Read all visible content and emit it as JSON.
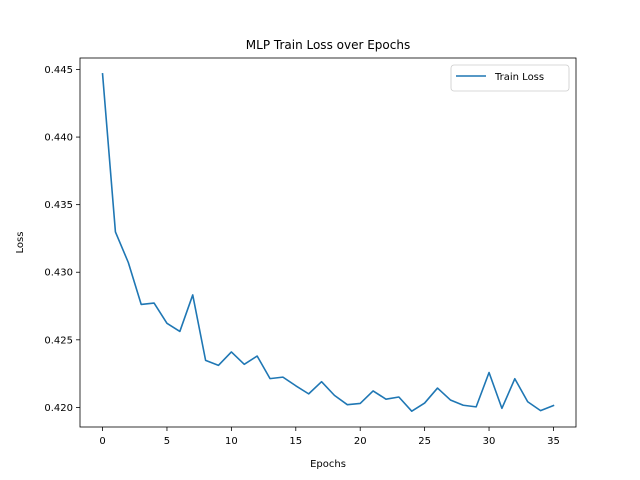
{
  "chart_data": {
    "type": "line",
    "title": "MLP Train Loss over Epochs",
    "xlabel": "Epochs",
    "ylabel": "Loss",
    "xlim": [
      -1.75,
      36.75
    ],
    "ylim": [
      0.41855,
      0.44585
    ],
    "x_ticks": [
      0,
      5,
      10,
      15,
      20,
      25,
      30,
      35
    ],
    "y_ticks": [
      0.42,
      0.425,
      0.43,
      0.435,
      0.44,
      0.445
    ],
    "y_tick_labels": [
      "0.420",
      "0.425",
      "0.430",
      "0.435",
      "0.440",
      "0.445"
    ],
    "grid": false,
    "legend_position": "top-right",
    "series": [
      {
        "name": "Train Loss",
        "color": "#1f77b4",
        "x": [
          0,
          1,
          2,
          3,
          4,
          5,
          6,
          7,
          8,
          9,
          10,
          11,
          12,
          13,
          14,
          15,
          16,
          17,
          18,
          19,
          20,
          21,
          22,
          23,
          24,
          25,
          26,
          27,
          28,
          29,
          30,
          31,
          32,
          33,
          34,
          35
        ],
        "values": [
          0.44468,
          0.43298,
          0.43072,
          0.42762,
          0.42772,
          0.42622,
          0.42562,
          0.42832,
          0.42348,
          0.42311,
          0.4241,
          0.42319,
          0.4238,
          0.42213,
          0.42224,
          0.4216,
          0.421,
          0.4219,
          0.42089,
          0.4202,
          0.42029,
          0.42122,
          0.42061,
          0.42077,
          0.41972,
          0.42032,
          0.42143,
          0.42055,
          0.42016,
          0.42004,
          0.42258,
          0.41993,
          0.42212,
          0.42042,
          0.41976,
          0.42014
        ]
      }
    ]
  }
}
